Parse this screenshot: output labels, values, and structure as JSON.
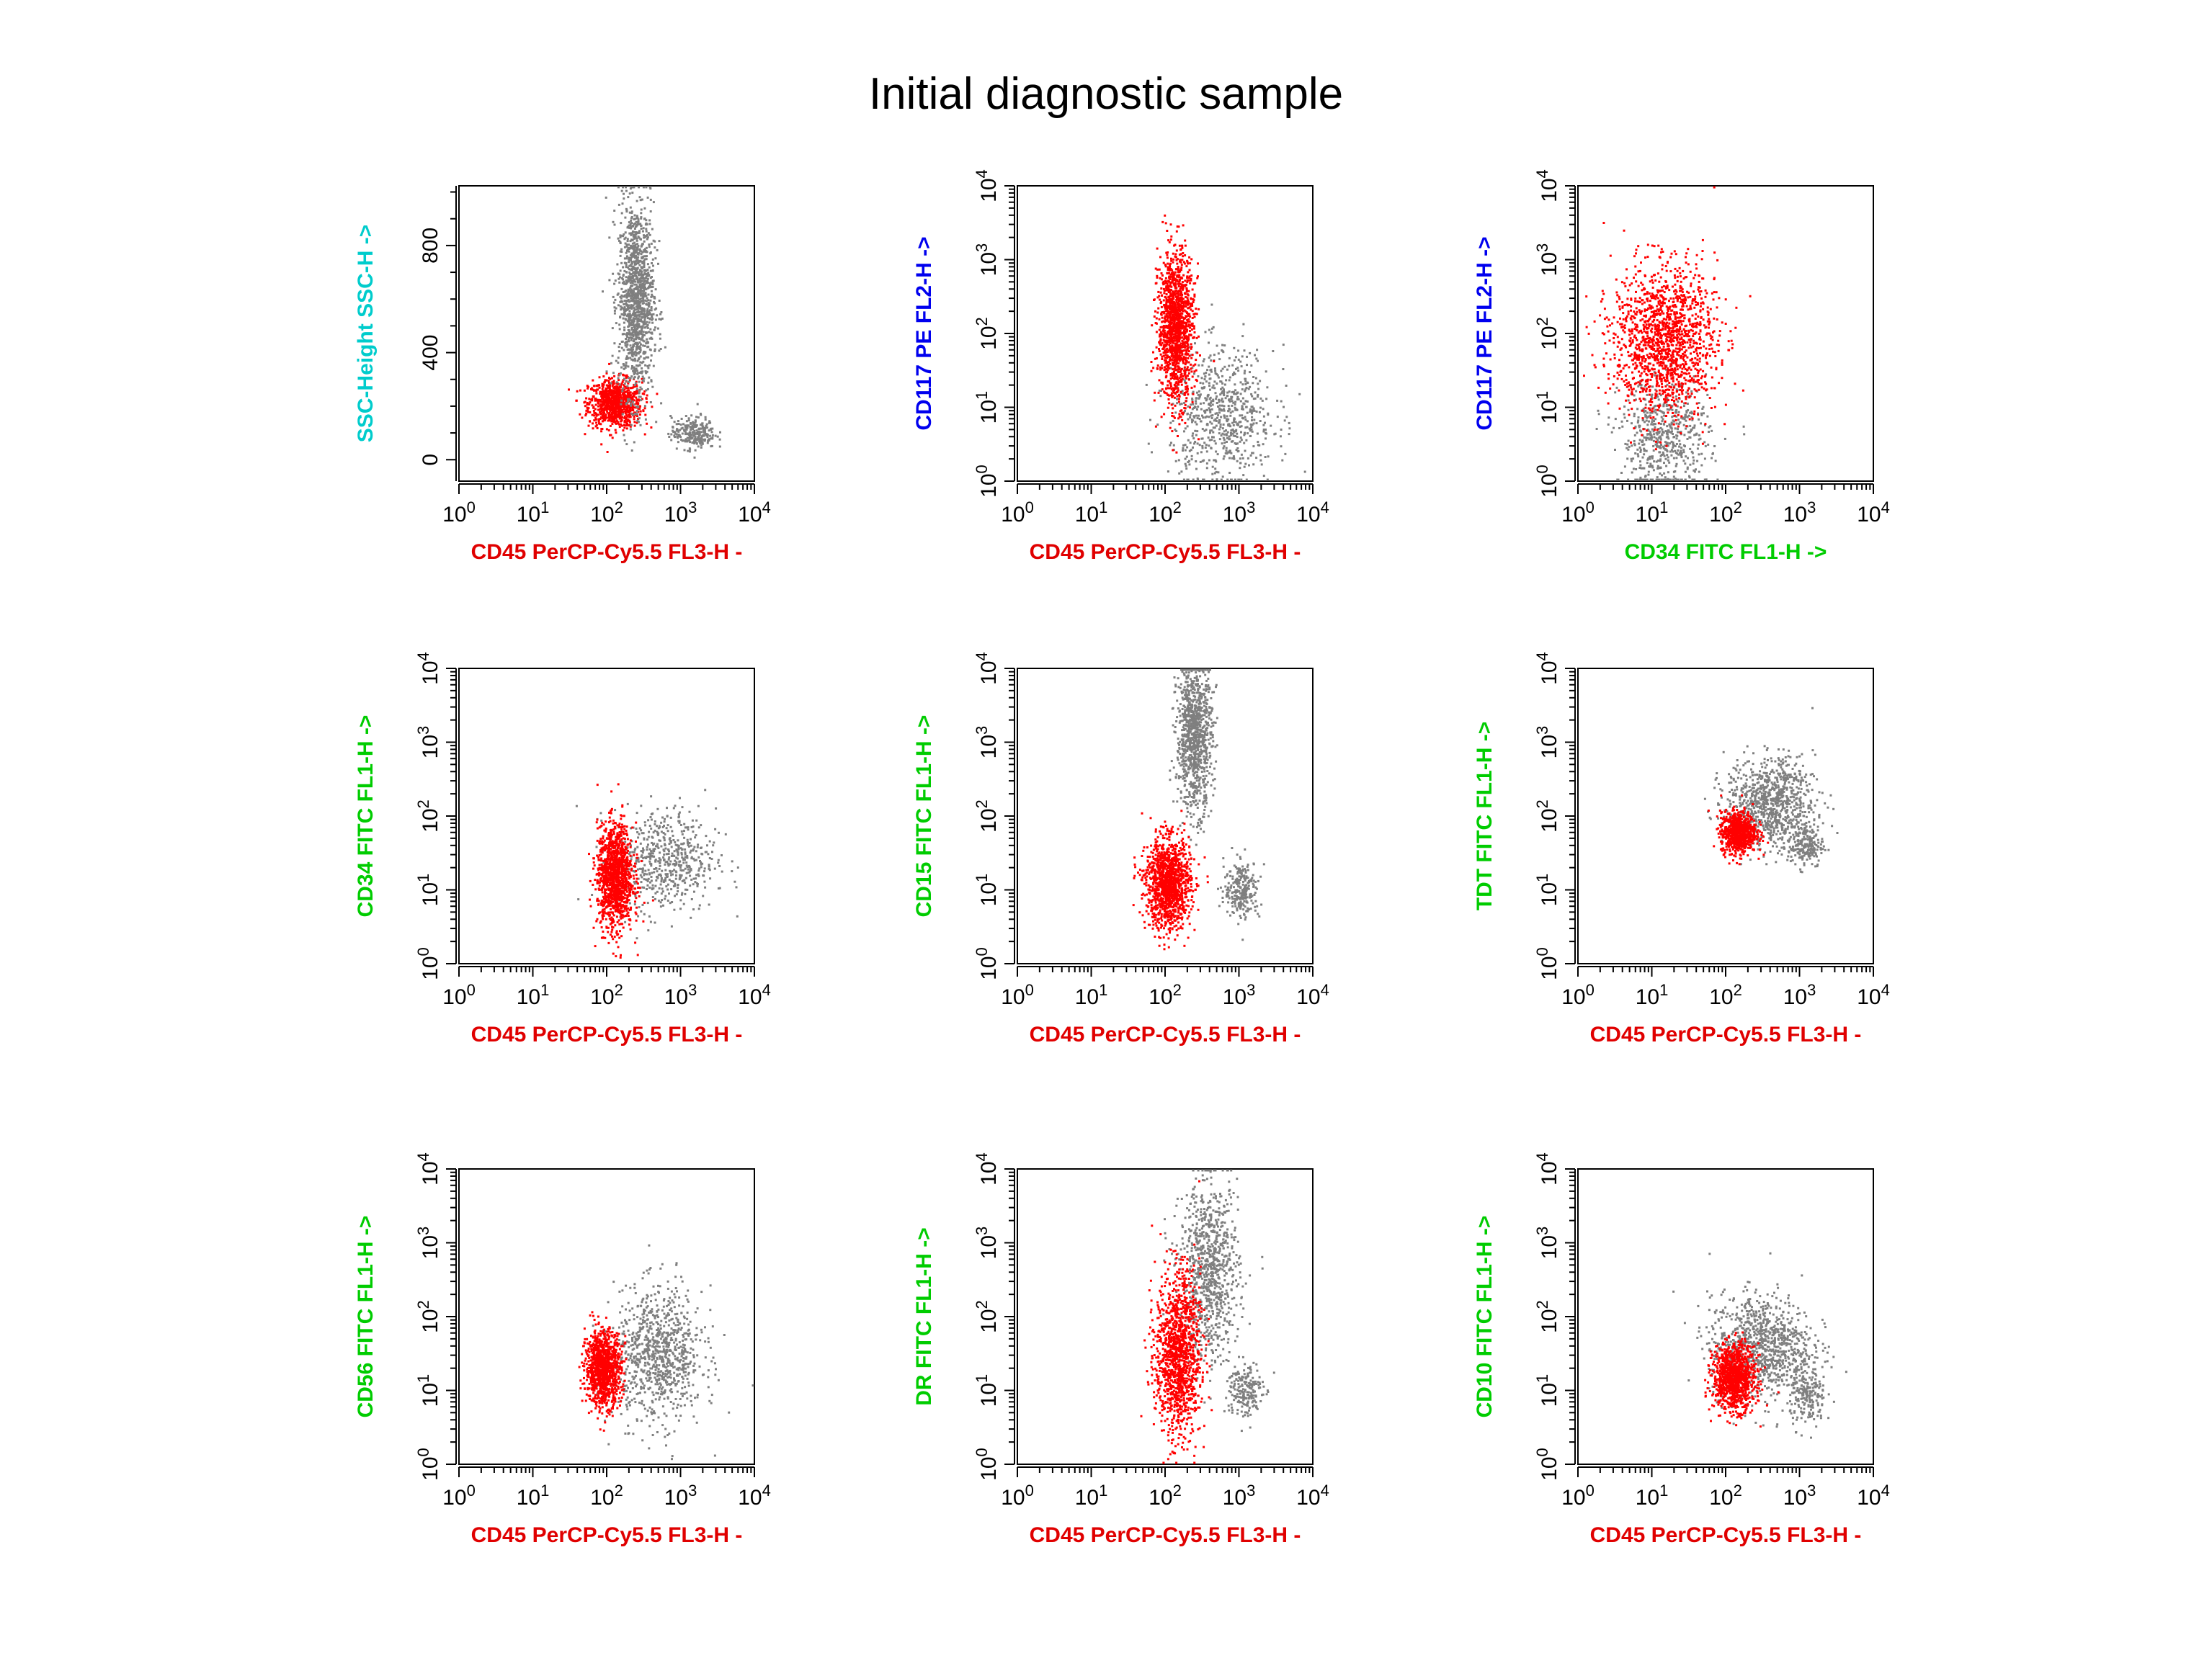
{
  "title": "Initial diagnostic sample",
  "colors": {
    "gate": "#ff0000",
    "other": "#7f7f7f",
    "cd45": "#e00000",
    "cd34": "#00cc00",
    "cd117": "#0000ee",
    "ssc": "#00cccc"
  },
  "chart_data": [
    {
      "type": "scatter",
      "title": "",
      "xlabel": "CD45 PerCP-Cy5.5 FL3-H -",
      "ylabel": "SSC-Height SSC-H ->",
      "xscale": "log",
      "yscale": "linear",
      "xlim": [
        1,
        10000
      ],
      "ylim": [
        -80,
        1023
      ],
      "xticks": [
        "10^0",
        "10^1",
        "10^2",
        "10^3",
        "10^4"
      ],
      "yticks": [
        "0",
        "400",
        "800"
      ],
      "xlabel_color": "cd45",
      "ylabel_color": "ssc",
      "populations": [
        {
          "color": "gate",
          "count": 900,
          "center": [
            130,
            210
          ],
          "spread": [
            0.18,
            45
          ]
        },
        {
          "color": "other",
          "count": 1300,
          "center": [
            250,
            600
          ],
          "spread": [
            0.12,
            180
          ]
        },
        {
          "color": "other",
          "count": 250,
          "center": [
            1500,
            100
          ],
          "spread": [
            0.15,
            30
          ]
        }
      ]
    },
    {
      "type": "scatter",
      "title": "",
      "xlabel": "CD45 PerCP-Cy5.5 FL3-H -",
      "ylabel": "CD117 PE FL2-H ->",
      "xscale": "log",
      "yscale": "log",
      "xlim": [
        1,
        10000
      ],
      "ylim": [
        1,
        10000
      ],
      "xticks": [
        "10^0",
        "10^1",
        "10^2",
        "10^3",
        "10^4"
      ],
      "yticks": [
        "10^0",
        "10^1",
        "10^2",
        "10^3",
        "10^4"
      ],
      "xlabel_color": "cd45",
      "ylabel_color": "cd117",
      "populations": [
        {
          "color": "other",
          "count": 700,
          "center": [
            600,
            8
          ],
          "spread": [
            0.35,
            0.45
          ]
        },
        {
          "color": "gate",
          "count": 1400,
          "center": [
            140,
            120
          ],
          "spread": [
            0.12,
            0.5
          ]
        }
      ]
    },
    {
      "type": "scatter",
      "title": "",
      "xlabel": "CD34 FITC FL1-H ->",
      "ylabel": "CD117 PE FL2-H ->",
      "xscale": "log",
      "yscale": "log",
      "xlim": [
        1,
        10000
      ],
      "ylim": [
        1,
        10000
      ],
      "xticks": [
        "10^0",
        "10^1",
        "10^2",
        "10^3",
        "10^4"
      ],
      "yticks": [
        "10^0",
        "10^1",
        "10^2",
        "10^3",
        "10^4"
      ],
      "xlabel_color": "cd34",
      "ylabel_color": "cd117",
      "populations": [
        {
          "color": "other",
          "count": 600,
          "center": [
            15,
            4
          ],
          "spread": [
            0.3,
            0.4
          ]
        },
        {
          "color": "gate",
          "count": 1500,
          "center": [
            15,
            80
          ],
          "spread": [
            0.35,
            0.5
          ]
        }
      ]
    },
    {
      "type": "scatter",
      "title": "",
      "xlabel": "CD45 PerCP-Cy5.5 FL3-H -",
      "ylabel": "CD34 FITC FL1-H ->",
      "xscale": "log",
      "yscale": "log",
      "xlim": [
        1,
        10000
      ],
      "ylim": [
        1,
        10000
      ],
      "xticks": [
        "10^0",
        "10^1",
        "10^2",
        "10^3",
        "10^4"
      ],
      "yticks": [
        "10^0",
        "10^1",
        "10^2",
        "10^3",
        "10^4"
      ],
      "xlabel_color": "cd45",
      "ylabel_color": "cd34",
      "populations": [
        {
          "color": "other",
          "count": 600,
          "center": [
            600,
            25
          ],
          "spread": [
            0.35,
            0.35
          ]
        },
        {
          "color": "gate",
          "count": 1300,
          "center": [
            130,
            15
          ],
          "spread": [
            0.12,
            0.35
          ]
        }
      ]
    },
    {
      "type": "scatter",
      "title": "",
      "xlabel": "CD45 PerCP-Cy5.5 FL3-H -",
      "ylabel": "CD15 FITC FL1-H ->",
      "xscale": "log",
      "yscale": "log",
      "xlim": [
        1,
        10000
      ],
      "ylim": [
        1,
        10000
      ],
      "xticks": [
        "10^0",
        "10^1",
        "10^2",
        "10^3",
        "10^4"
      ],
      "yticks": [
        "10^0",
        "10^1",
        "10^2",
        "10^3",
        "10^4"
      ],
      "xlabel_color": "cd45",
      "ylabel_color": "cd34",
      "populations": [
        {
          "color": "other",
          "count": 1000,
          "center": [
            250,
            1200
          ],
          "spread": [
            0.12,
            0.5
          ]
        },
        {
          "color": "other",
          "count": 250,
          "center": [
            1100,
            10
          ],
          "spread": [
            0.12,
            0.2
          ]
        },
        {
          "color": "gate",
          "count": 1300,
          "center": [
            110,
            12
          ],
          "spread": [
            0.15,
            0.3
          ]
        }
      ]
    },
    {
      "type": "scatter",
      "title": "",
      "xlabel": "CD45 PerCP-Cy5.5 FL3-H -",
      "ylabel": "TDT FITC FL1-H ->",
      "xscale": "log",
      "yscale": "log",
      "xlim": [
        1,
        10000
      ],
      "ylim": [
        1,
        10000
      ],
      "xticks": [
        "10^0",
        "10^1",
        "10^2",
        "10^3",
        "10^4"
      ],
      "yticks": [
        "10^0",
        "10^1",
        "10^2",
        "10^3",
        "10^4"
      ],
      "xlabel_color": "cd45",
      "ylabel_color": "cd34",
      "populations": [
        {
          "color": "other",
          "count": 900,
          "center": [
            400,
            150
          ],
          "spread": [
            0.3,
            0.3
          ]
        },
        {
          "color": "other",
          "count": 200,
          "center": [
            1200,
            40
          ],
          "spread": [
            0.12,
            0.15
          ]
        },
        {
          "color": "gate",
          "count": 800,
          "center": [
            150,
            60
          ],
          "spread": [
            0.12,
            0.14
          ]
        }
      ]
    },
    {
      "type": "scatter",
      "title": "",
      "xlabel": "CD45 PerCP-Cy5.5 FL3-H -",
      "ylabel": "CD56 FITC FL1-H ->",
      "xscale": "log",
      "yscale": "log",
      "xlim": [
        1,
        10000
      ],
      "ylim": [
        1,
        10000
      ],
      "xticks": [
        "10^0",
        "10^1",
        "10^2",
        "10^3",
        "10^4"
      ],
      "yticks": [
        "10^0",
        "10^1",
        "10^2",
        "10^3",
        "10^4"
      ],
      "xlabel_color": "cd45",
      "ylabel_color": "cd34",
      "populations": [
        {
          "color": "other",
          "count": 900,
          "center": [
            500,
            30
          ],
          "spread": [
            0.3,
            0.45
          ]
        },
        {
          "color": "gate",
          "count": 1100,
          "center": [
            90,
            20
          ],
          "spread": [
            0.12,
            0.25
          ]
        }
      ]
    },
    {
      "type": "scatter",
      "title": "",
      "xlabel": "CD45 PerCP-Cy5.5 FL3-H -",
      "ylabel": "DR FITC FL1-H ->",
      "xscale": "log",
      "yscale": "log",
      "xlim": [
        1,
        10000
      ],
      "ylim": [
        1,
        10000
      ],
      "xticks": [
        "10^0",
        "10^1",
        "10^2",
        "10^3",
        "10^4"
      ],
      "yticks": [
        "10^0",
        "10^1",
        "10^2",
        "10^3",
        "10^4"
      ],
      "xlabel_color": "cd45",
      "ylabel_color": "cd34",
      "populations": [
        {
          "color": "other",
          "count": 900,
          "center": [
            400,
            400
          ],
          "spread": [
            0.2,
            0.6
          ]
        },
        {
          "color": "other",
          "count": 200,
          "center": [
            1200,
            10
          ],
          "spread": [
            0.12,
            0.2
          ]
        },
        {
          "color": "gate",
          "count": 1300,
          "center": [
            150,
            30
          ],
          "spread": [
            0.15,
            0.55
          ]
        }
      ]
    },
    {
      "type": "scatter",
      "title": "",
      "xlabel": "CD45 PerCP-Cy5.5 FL3-H -",
      "ylabel": "CD10 FITC FL1-H ->",
      "xscale": "log",
      "yscale": "log",
      "xlim": [
        1,
        10000
      ],
      "ylim": [
        1,
        10000
      ],
      "xticks": [
        "10^0",
        "10^1",
        "10^2",
        "10^3",
        "10^4"
      ],
      "yticks": [
        "10^0",
        "10^1",
        "10^2",
        "10^3",
        "10^4"
      ],
      "xlabel_color": "cd45",
      "ylabel_color": "cd34",
      "populations": [
        {
          "color": "other",
          "count": 1000,
          "center": [
            300,
            40
          ],
          "spread": [
            0.35,
            0.35
          ]
        },
        {
          "color": "other",
          "count": 200,
          "center": [
            1300,
            8
          ],
          "spread": [
            0.12,
            0.2
          ]
        },
        {
          "color": "gate",
          "count": 1100,
          "center": [
            130,
            15
          ],
          "spread": [
            0.14,
            0.22
          ]
        }
      ]
    }
  ]
}
